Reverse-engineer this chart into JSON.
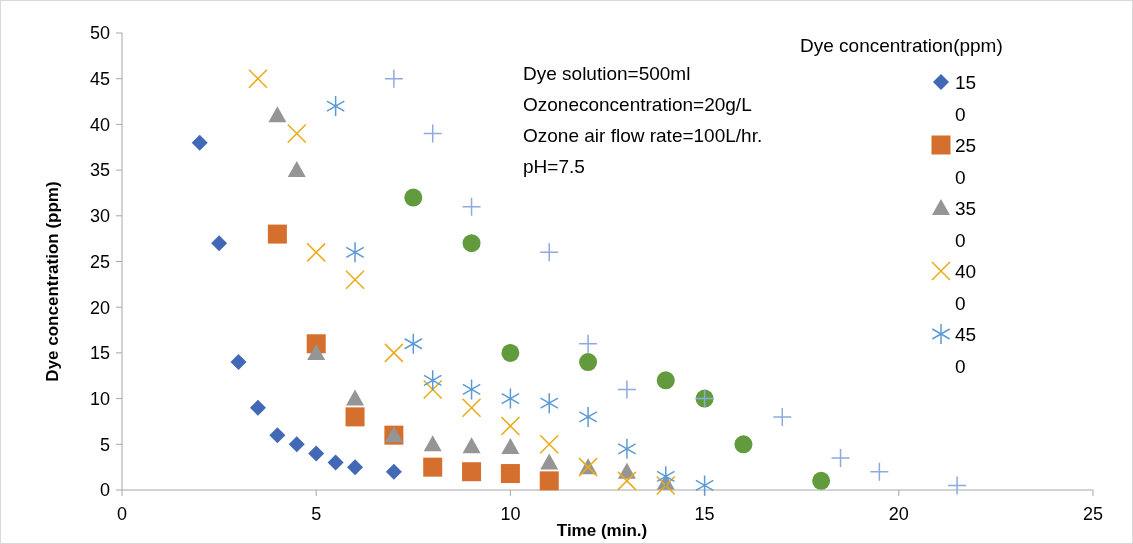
{
  "chart_data": {
    "type": "scatter",
    "xlabel": "Time (min.)",
    "ylabel": "Dye concentration (ppm)",
    "legend_title": "Dye concentration(ppm)",
    "legend": "right",
    "grid": false,
    "xlim": [
      0,
      25
    ],
    "xticks": [
      0,
      5,
      10,
      15,
      20,
      25
    ],
    "ylim": [
      0,
      50
    ],
    "yticks": [
      0,
      5,
      10,
      15,
      20,
      25,
      30,
      35,
      40,
      45,
      50
    ],
    "annotations": [
      "Dye solution=500ml",
      "Ozoneconcentration=20g/L",
      "Ozone air flow rate=100L/hr.",
      "pH=7.5"
    ],
    "series": [
      {
        "name": "150",
        "color": "#4169b5",
        "marker": "diamond",
        "x": [
          2,
          2.5,
          3,
          3.5,
          4,
          4.5,
          5,
          5.5,
          6,
          7
        ],
        "values": [
          38,
          27,
          14,
          9,
          6,
          5,
          4,
          3,
          2.5,
          2
        ]
      },
      {
        "name": "250",
        "color": "#d46f2e",
        "marker": "square",
        "x": [
          4,
          5,
          6,
          7,
          8,
          9,
          10,
          11
        ],
        "values": [
          28,
          16,
          8,
          6,
          2.5,
          2,
          1.8,
          1
        ]
      },
      {
        "name": "350",
        "color": "#959595",
        "marker": "triangle",
        "x": [
          4,
          4.5,
          5,
          6,
          7,
          8,
          9,
          10,
          11,
          12,
          13,
          14
        ],
        "values": [
          41,
          35,
          15,
          10,
          6,
          5,
          4.8,
          4.7,
          3,
          2.5,
          2,
          0.8
        ]
      },
      {
        "name": "400",
        "color": "#e9ab17",
        "marker": "cross",
        "x": [
          3.5,
          4.5,
          5,
          6,
          7,
          8,
          9,
          10,
          11,
          12,
          13,
          14
        ],
        "values": [
          45,
          39,
          26,
          23,
          15,
          11,
          9,
          7,
          5,
          2.5,
          1,
          0.5
        ]
      },
      {
        "name": "450",
        "color": "#5b9bd5",
        "x": [
          5.5,
          6,
          7.5,
          8,
          9,
          10,
          11,
          12,
          13,
          14,
          15
        ],
        "values": [
          42,
          26,
          16,
          12,
          11,
          10,
          9.5,
          8,
          4.5,
          1.5,
          0.5
        ]
      },
      {
        "color": "#619b3d",
        "marker": "circle",
        "x": [
          7.5,
          9,
          10,
          12,
          14,
          15,
          16,
          18
        ],
        "values": [
          32,
          27,
          15,
          14,
          12,
          10,
          5,
          1
        ]
      },
      {
        "color": "#8eaadc",
        "marker": "plus",
        "x": [
          7,
          8,
          9,
          11,
          12,
          13,
          15,
          17,
          18.5,
          19.5,
          21.5
        ],
        "values": [
          45,
          39,
          31,
          26,
          16,
          11,
          10,
          8,
          3.5,
          2,
          0.5
        ]
      }
    ]
  }
}
